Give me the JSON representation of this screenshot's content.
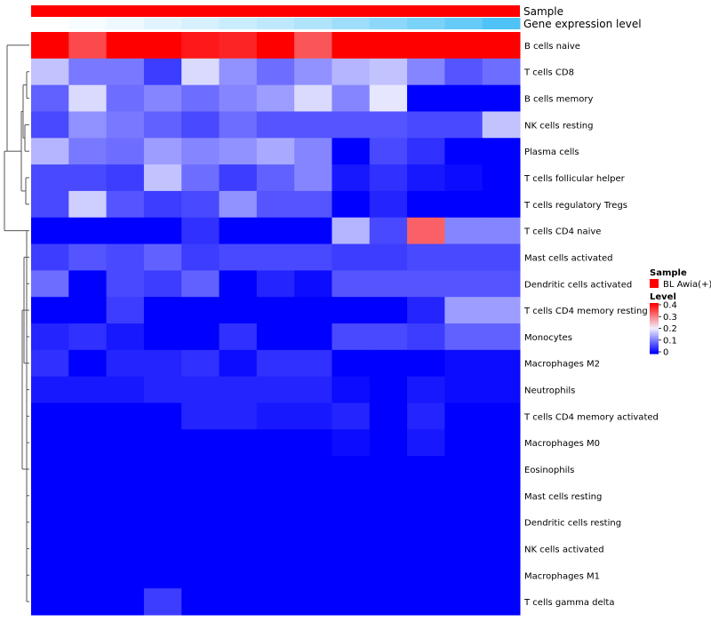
{
  "chart_data": {
    "type": "heatmap",
    "annotation_tracks": [
      {
        "label": "Sample",
        "color": "#ff0000"
      },
      {
        "label": "Gene expression level",
        "values": [
          0.0,
          0.03,
          0.06,
          0.1,
          0.14,
          0.18,
          0.22,
          0.27,
          0.33,
          0.39,
          0.45,
          0.52,
          0.6
        ],
        "color_low": "#ffffff",
        "color_high": "#4fc3f7"
      }
    ],
    "rows": [
      "B cells naive",
      "T cells CD8",
      "B cells memory",
      "NK cells resting",
      "Plasma cells",
      "T cells follicular helper",
      "T cells regulatory  Tregs",
      "T cells CD4 naive",
      "Mast cells activated",
      "Dendritic cells activated",
      "T cells CD4 memory resting",
      "Monocytes",
      "Macrophages M2",
      "Neutrophils",
      "T cells CD4 memory activated",
      "Macrophages M0",
      "Eosinophils",
      "Mast cells resting",
      "Dendritic cells resting",
      "NK cells activated",
      "Macrophages M1",
      "T cells gamma delta"
    ],
    "values": [
      [
        0.46,
        0.34,
        0.56,
        0.44,
        0.38,
        0.37,
        0.45,
        0.33,
        0.56,
        0.46,
        0.48,
        0.52,
        0.47
      ],
      [
        0.16,
        0.1,
        0.1,
        0.05,
        0.18,
        0.12,
        0.09,
        0.12,
        0.15,
        0.16,
        0.11,
        0.07,
        0.09
      ],
      [
        0.08,
        0.18,
        0.09,
        0.11,
        0.09,
        0.11,
        0.13,
        0.18,
        0.11,
        0.19,
        0.0,
        0.0,
        0.0
      ],
      [
        0.06,
        0.12,
        0.1,
        0.08,
        0.06,
        0.09,
        0.07,
        0.07,
        0.07,
        0.07,
        0.06,
        0.06,
        0.16
      ],
      [
        0.15,
        0.1,
        0.09,
        0.13,
        0.11,
        0.12,
        0.14,
        0.11,
        0.0,
        0.06,
        0.04,
        0.0,
        0.0
      ],
      [
        0.06,
        0.06,
        0.05,
        0.16,
        0.09,
        0.05,
        0.08,
        0.11,
        0.02,
        0.04,
        0.02,
        0.01,
        0.0
      ],
      [
        0.06,
        0.17,
        0.07,
        0.05,
        0.06,
        0.12,
        0.07,
        0.07,
        0.0,
        0.03,
        0.0,
        0.0,
        0.0
      ],
      [
        0.0,
        0.0,
        0.0,
        0.0,
        0.04,
        0.0,
        0.0,
        0.0,
        0.15,
        0.06,
        0.32,
        0.11,
        0.11
      ],
      [
        0.05,
        0.07,
        0.06,
        0.08,
        0.05,
        0.06,
        0.06,
        0.06,
        0.05,
        0.05,
        0.06,
        0.06,
        0.06
      ],
      [
        0.09,
        0.0,
        0.06,
        0.05,
        0.08,
        0.0,
        0.03,
        0.01,
        0.07,
        0.07,
        0.07,
        0.07,
        0.07
      ],
      [
        0.0,
        0.0,
        0.05,
        0.0,
        0.0,
        0.0,
        0.0,
        0.0,
        0.0,
        0.0,
        0.03,
        0.13,
        0.13
      ],
      [
        0.03,
        0.04,
        0.02,
        0.0,
        0.0,
        0.04,
        0.0,
        0.0,
        0.06,
        0.06,
        0.05,
        0.08,
        0.08
      ],
      [
        0.04,
        0.0,
        0.03,
        0.03,
        0.04,
        0.01,
        0.04,
        0.04,
        0.0,
        0.0,
        0.0,
        0.01,
        0.01
      ],
      [
        0.02,
        0.02,
        0.02,
        0.03,
        0.03,
        0.03,
        0.03,
        0.03,
        0.01,
        0.0,
        0.02,
        0.01,
        0.01
      ],
      [
        0.0,
        0.0,
        0.0,
        0.0,
        0.03,
        0.03,
        0.02,
        0.02,
        0.03,
        0.0,
        0.03,
        0.0,
        0.0
      ],
      [
        0.0,
        0.0,
        0.0,
        0.0,
        0.0,
        0.0,
        0.0,
        0.0,
        0.01,
        0.0,
        0.02,
        0.0,
        0.0
      ],
      [
        0.0,
        0.0,
        0.0,
        0.0,
        0.0,
        0.0,
        0.0,
        0.0,
        0.0,
        0.0,
        0.0,
        0.0,
        0.0
      ],
      [
        0.0,
        0.0,
        0.0,
        0.0,
        0.0,
        0.0,
        0.0,
        0.0,
        0.0,
        0.0,
        0.0,
        0.0,
        0.0
      ],
      [
        0.0,
        0.0,
        0.0,
        0.0,
        0.0,
        0.0,
        0.0,
        0.0,
        0.0,
        0.0,
        0.0,
        0.0,
        0.0
      ],
      [
        0.0,
        0.0,
        0.0,
        0.0,
        0.0,
        0.0,
        0.0,
        0.0,
        0.0,
        0.0,
        0.0,
        0.0,
        0.0
      ],
      [
        0.0,
        0.0,
        0.0,
        0.0,
        0.0,
        0.0,
        0.0,
        0.0,
        0.0,
        0.0,
        0.0,
        0.0,
        0.0
      ],
      [
        0.0,
        0.0,
        0.0,
        0.05,
        0.0,
        0.0,
        0.0,
        0.0,
        0.0,
        0.0,
        0.0,
        0.0,
        0.0
      ]
    ],
    "color_scale": {
      "min": 0,
      "mid": 0.2,
      "max": 0.4,
      "low": "#0000ff",
      "mid_color": "#f2f2ff",
      "high": "#ff0000"
    },
    "legend": {
      "sample_title": "Sample",
      "sample_entry": "BL Awia(+)",
      "level_title": "Level",
      "level_ticks": [
        "0.4",
        "0.3",
        "0.2",
        "0.1",
        "0"
      ],
      "placement": "right"
    },
    "dendrogram": "rows"
  }
}
